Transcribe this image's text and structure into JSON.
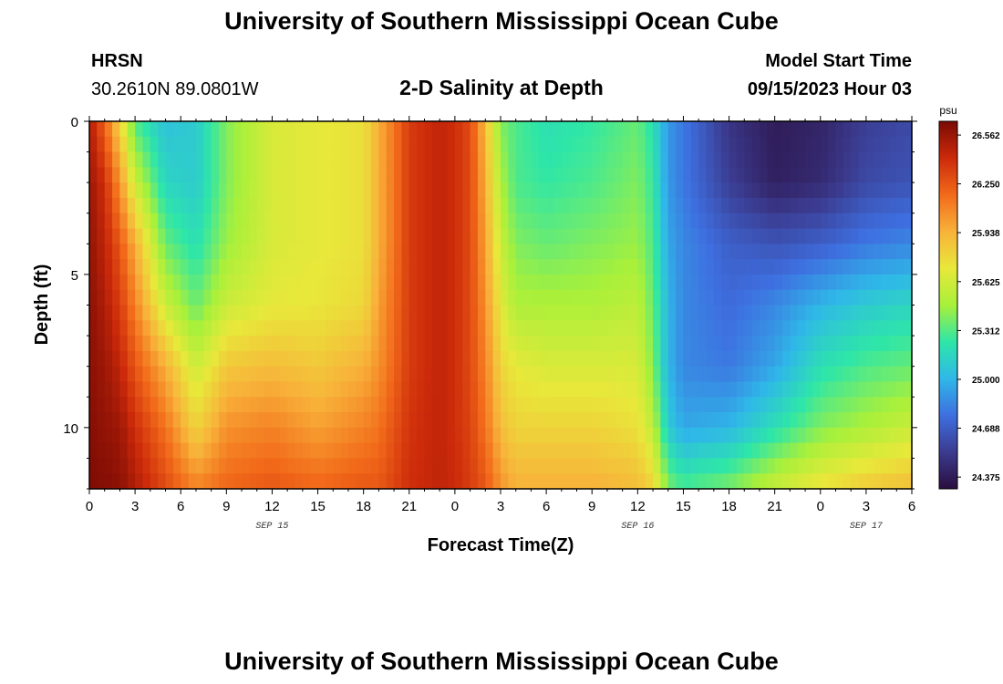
{
  "header": {
    "title": "University of Southern Mississippi Ocean Cube",
    "station": "HRSN",
    "coords": "30.2610N  89.0801W",
    "subtitle": "2-D Salinity at Depth",
    "model_start_label": "Model Start Time",
    "model_start_value": "09/15/2023 Hour 03"
  },
  "footer": {
    "title": "University of Southern Mississippi Ocean Cube"
  },
  "chart_data": {
    "type": "heatmap",
    "title": "2-D Salinity at Depth",
    "xlabel": "Forecast Time(Z)",
    "ylabel": "Depth (ft)",
    "x_hours_range": [
      0,
      54
    ],
    "x_tick_labels": [
      "0",
      "3",
      "6",
      "9",
      "12",
      "15",
      "18",
      "21",
      "0",
      "3",
      "6",
      "9",
      "12",
      "15",
      "18",
      "21",
      "0",
      "3",
      "6"
    ],
    "date_labels": [
      {
        "label": "SEP 15",
        "hour": 12
      },
      {
        "label": "SEP 16",
        "hour": 36
      },
      {
        "label": "SEP 17",
        "hour": 51
      }
    ],
    "y_range": [
      0,
      12
    ],
    "y_tick_labels": [
      "0",
      "5",
      "10"
    ],
    "colorbar": {
      "unit": "psu",
      "min": 24.3,
      "max": 26.65,
      "tick_values": [
        "26.562",
        "26.250",
        "25.938",
        "25.625",
        "25.312",
        "25.000",
        "24.688",
        "24.375"
      ],
      "colors": [
        "#2a0d3e",
        "#3b3b8f",
        "#3e6fe0",
        "#2fb8e8",
        "#2ee6a8",
        "#a8f03a",
        "#e8e83a",
        "#f8b23a",
        "#f26a1a",
        "#cc2a0a",
        "#7a0a04"
      ]
    },
    "salinity_psu": {
      "x_hours": [
        0,
        1,
        2,
        3,
        5,
        7,
        9,
        12,
        15,
        18,
        19,
        21,
        23,
        24,
        25,
        26,
        27,
        28,
        30,
        33,
        36,
        37,
        38,
        39,
        42,
        45,
        48,
        51,
        54
      ],
      "depth_ft": [
        0,
        2,
        4,
        6,
        8,
        10,
        12
      ],
      "values": [
        [
          26.5,
          26.2,
          25.8,
          25.3,
          25.05,
          25.1,
          25.4,
          25.65,
          25.7,
          25.75,
          25.95,
          26.35,
          26.45,
          26.4,
          26.3,
          25.9,
          25.4,
          25.3,
          25.2,
          25.25,
          25.35,
          25.2,
          24.9,
          24.8,
          24.5,
          24.38,
          24.42,
          24.55,
          24.6
        ],
        [
          26.55,
          26.4,
          26.05,
          25.6,
          25.15,
          25.1,
          25.4,
          25.65,
          25.7,
          25.75,
          25.95,
          26.35,
          26.45,
          26.4,
          26.3,
          25.95,
          25.5,
          25.3,
          25.25,
          25.3,
          25.4,
          25.25,
          24.9,
          24.8,
          24.55,
          24.4,
          24.45,
          24.6,
          24.65
        ],
        [
          26.58,
          26.45,
          26.25,
          25.95,
          25.35,
          25.2,
          25.45,
          25.65,
          25.7,
          25.75,
          25.95,
          26.35,
          26.45,
          26.4,
          26.3,
          26.0,
          25.6,
          25.4,
          25.35,
          25.4,
          25.45,
          25.3,
          24.95,
          24.85,
          24.7,
          24.65,
          24.7,
          24.8,
          24.85
        ],
        [
          26.6,
          26.5,
          26.35,
          26.1,
          25.6,
          25.35,
          25.6,
          25.7,
          25.72,
          25.78,
          26.0,
          26.35,
          26.45,
          26.4,
          26.3,
          26.05,
          25.7,
          25.5,
          25.5,
          25.5,
          25.55,
          25.35,
          25.0,
          24.85,
          24.75,
          24.85,
          25.0,
          25.1,
          25.15
        ],
        [
          26.6,
          26.55,
          26.45,
          26.25,
          25.95,
          25.6,
          25.85,
          25.9,
          25.85,
          25.95,
          26.05,
          26.35,
          26.45,
          26.4,
          26.3,
          26.1,
          25.8,
          25.7,
          25.65,
          25.65,
          25.65,
          25.4,
          25.0,
          24.85,
          24.8,
          24.95,
          25.2,
          25.3,
          25.35
        ],
        [
          26.62,
          26.58,
          26.55,
          26.4,
          26.15,
          25.8,
          26.05,
          26.1,
          26.0,
          26.1,
          26.15,
          26.38,
          26.45,
          26.4,
          26.32,
          26.15,
          25.9,
          25.8,
          25.8,
          25.8,
          25.75,
          25.55,
          25.1,
          24.95,
          25.0,
          25.2,
          25.4,
          25.5,
          25.6
        ],
        [
          26.63,
          26.62,
          26.6,
          26.5,
          26.3,
          26.1,
          26.2,
          26.25,
          26.2,
          26.25,
          26.25,
          26.4,
          26.45,
          26.42,
          26.35,
          26.25,
          26.05,
          25.95,
          25.95,
          25.95,
          25.9,
          25.8,
          25.4,
          25.3,
          25.4,
          25.6,
          25.75,
          25.85,
          25.9
        ]
      ]
    }
  }
}
